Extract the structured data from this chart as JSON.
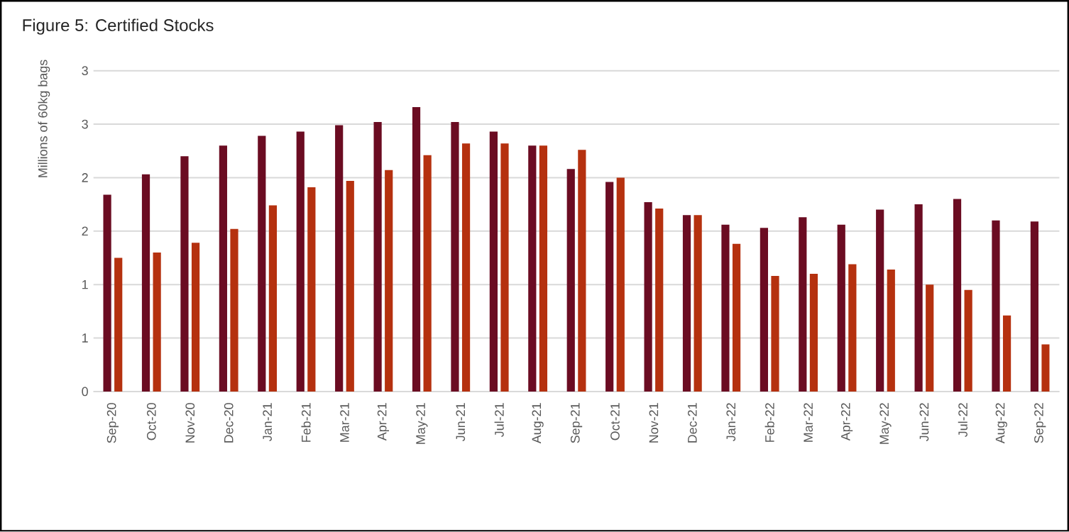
{
  "chart_data": {
    "type": "bar",
    "title": "Figure 5: Certified Stocks",
    "ylabel": "Millions of 60kg bags",
    "categories": [
      "Sep-20",
      "Oct-20",
      "Nov-20",
      "Dec-20",
      "Jan-21",
      "Feb-21",
      "Mar-21",
      "Apr-21",
      "May-21",
      "Jun-21",
      "Jul-21",
      "Aug-21",
      "Sep-21",
      "Oct-21",
      "Nov-21",
      "Dec-21",
      "Jan-22",
      "Feb-22",
      "Mar-22",
      "Apr-22",
      "May-22",
      "Jun-22",
      "Jul-22",
      "Aug-22",
      "Sep-22"
    ],
    "series": [
      {
        "color": "#6b0c22",
        "values": [
          1.84,
          2.03,
          2.2,
          2.3,
          2.39,
          2.43,
          2.49,
          2.52,
          2.66,
          2.52,
          2.43,
          2.3,
          2.08,
          1.96,
          1.77,
          1.65,
          1.56,
          1.53,
          1.63,
          1.56,
          1.7,
          1.75,
          1.8,
          1.6,
          1.59
        ]
      },
      {
        "color": "#b5310f",
        "values": [
          1.25,
          1.3,
          1.39,
          1.52,
          1.74,
          1.91,
          1.97,
          2.07,
          2.21,
          2.32,
          2.32,
          2.3,
          2.26,
          2.0,
          1.71,
          1.65,
          1.38,
          1.08,
          1.1,
          1.19,
          1.14,
          1.0,
          0.95,
          0.71,
          0.44
        ]
      }
    ],
    "ylim": [
      0,
      3
    ],
    "yticks": [
      0,
      {
        "value": 0.5,
        "label": "1"
      },
      1,
      {
        "value": 1.5,
        "label": "2"
      },
      2,
      {
        "value": 2.5,
        "label": "3"
      },
      3
    ],
    "grid": "y"
  }
}
